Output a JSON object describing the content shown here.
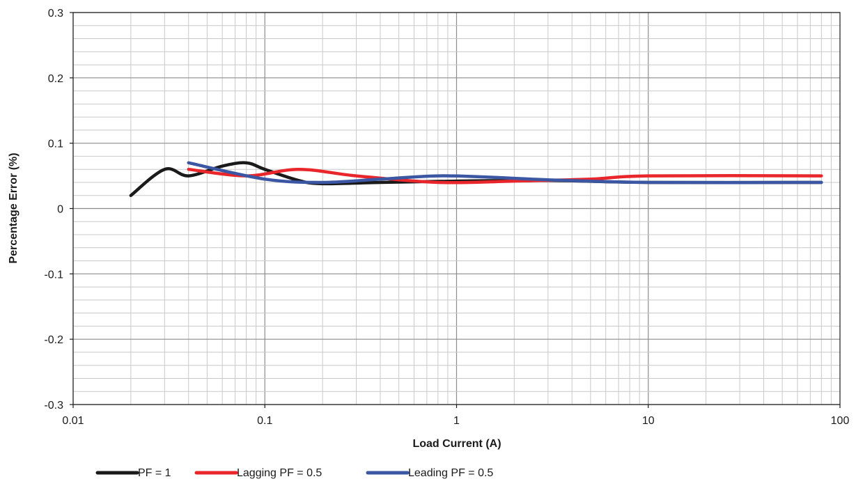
{
  "chart_data": {
    "type": "line",
    "xlabel": "Load Current (A)",
    "ylabel": "Percentage Error (%)",
    "xscale": "log",
    "xlim": [
      0.01,
      100
    ],
    "ylim": [
      -0.3,
      0.3
    ],
    "x_tick_labels": [
      "0.01",
      "0.1",
      "1",
      "10",
      "100"
    ],
    "y_tick_labels": [
      "0.3",
      "0.2",
      "0.1",
      "0",
      "-0.1",
      "-0.2",
      "-0.3"
    ],
    "grid": true,
    "legend_position": "bottom",
    "series": [
      {
        "name": "PF = 1",
        "color": "#1a1a1a",
        "x": [
          0.02,
          0.03,
          0.04,
          0.06,
          0.08,
          0.1,
          0.15,
          0.2,
          0.4,
          1,
          3,
          10,
          80
        ],
        "y": [
          0.02,
          0.06,
          0.05,
          0.065,
          0.07,
          0.06,
          0.043,
          0.038,
          0.04,
          0.042,
          0.043,
          0.04,
          0.04
        ]
      },
      {
        "name": "Lagging PF = 0.5",
        "color": "#e8262b",
        "x": [
          0.04,
          0.08,
          0.15,
          0.3,
          0.8,
          2,
          5,
          10,
          80
        ],
        "y": [
          0.06,
          0.05,
          0.06,
          0.05,
          0.04,
          0.042,
          0.045,
          0.05,
          0.05
        ]
      },
      {
        "name": "Leading PF = 0.5",
        "color": "#3b57a3",
        "x": [
          0.04,
          0.1,
          0.2,
          0.4,
          0.8,
          1.5,
          3,
          10,
          80
        ],
        "y": [
          0.07,
          0.045,
          0.04,
          0.045,
          0.05,
          0.048,
          0.044,
          0.04,
          0.04
        ]
      }
    ]
  }
}
